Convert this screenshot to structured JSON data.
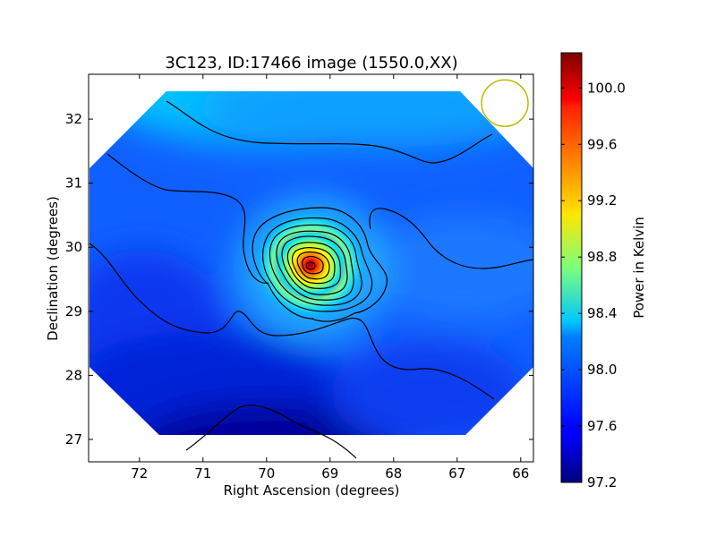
{
  "chart_data": {
    "type": "heatmap",
    "title": "3C123, ID:17466 image (1550.0,XX)",
    "xlabel": "Right Ascension (degrees)",
    "ylabel": "Declination (degrees)",
    "colorbar_label": "Power in Kelvin",
    "colormap": "jet",
    "x_axis_inverted": true,
    "xlim": [
      72.8,
      65.8
    ],
    "ylim": [
      26.65,
      32.7
    ],
    "x_ticks": [
      72,
      71,
      70,
      69,
      68,
      67,
      66
    ],
    "y_ticks": [
      27,
      28,
      29,
      30,
      31,
      32
    ],
    "x_tick_labels": [
      "72",
      "71",
      "70",
      "69",
      "68",
      "67",
      "66"
    ],
    "y_tick_labels": [
      "27",
      "28",
      "29",
      "30",
      "31",
      "32"
    ],
    "color_range": [
      97.2,
      100.25
    ],
    "colorbar_ticks": [
      97.2,
      97.6,
      98.0,
      98.4,
      98.8,
      99.2,
      99.6,
      100.0
    ],
    "colorbar_tick_labels": [
      "97.2",
      "97.6",
      "98.0",
      "98.4",
      "98.8",
      "99.2",
      "99.6",
      "100.0"
    ],
    "peak": {
      "ra": 69.25,
      "dec": 29.7,
      "value": 100.2
    },
    "beam_marker": {
      "ra": 66.25,
      "dec": 32.25,
      "color": "#bcbc00"
    },
    "grid": false,
    "contours": true
  }
}
